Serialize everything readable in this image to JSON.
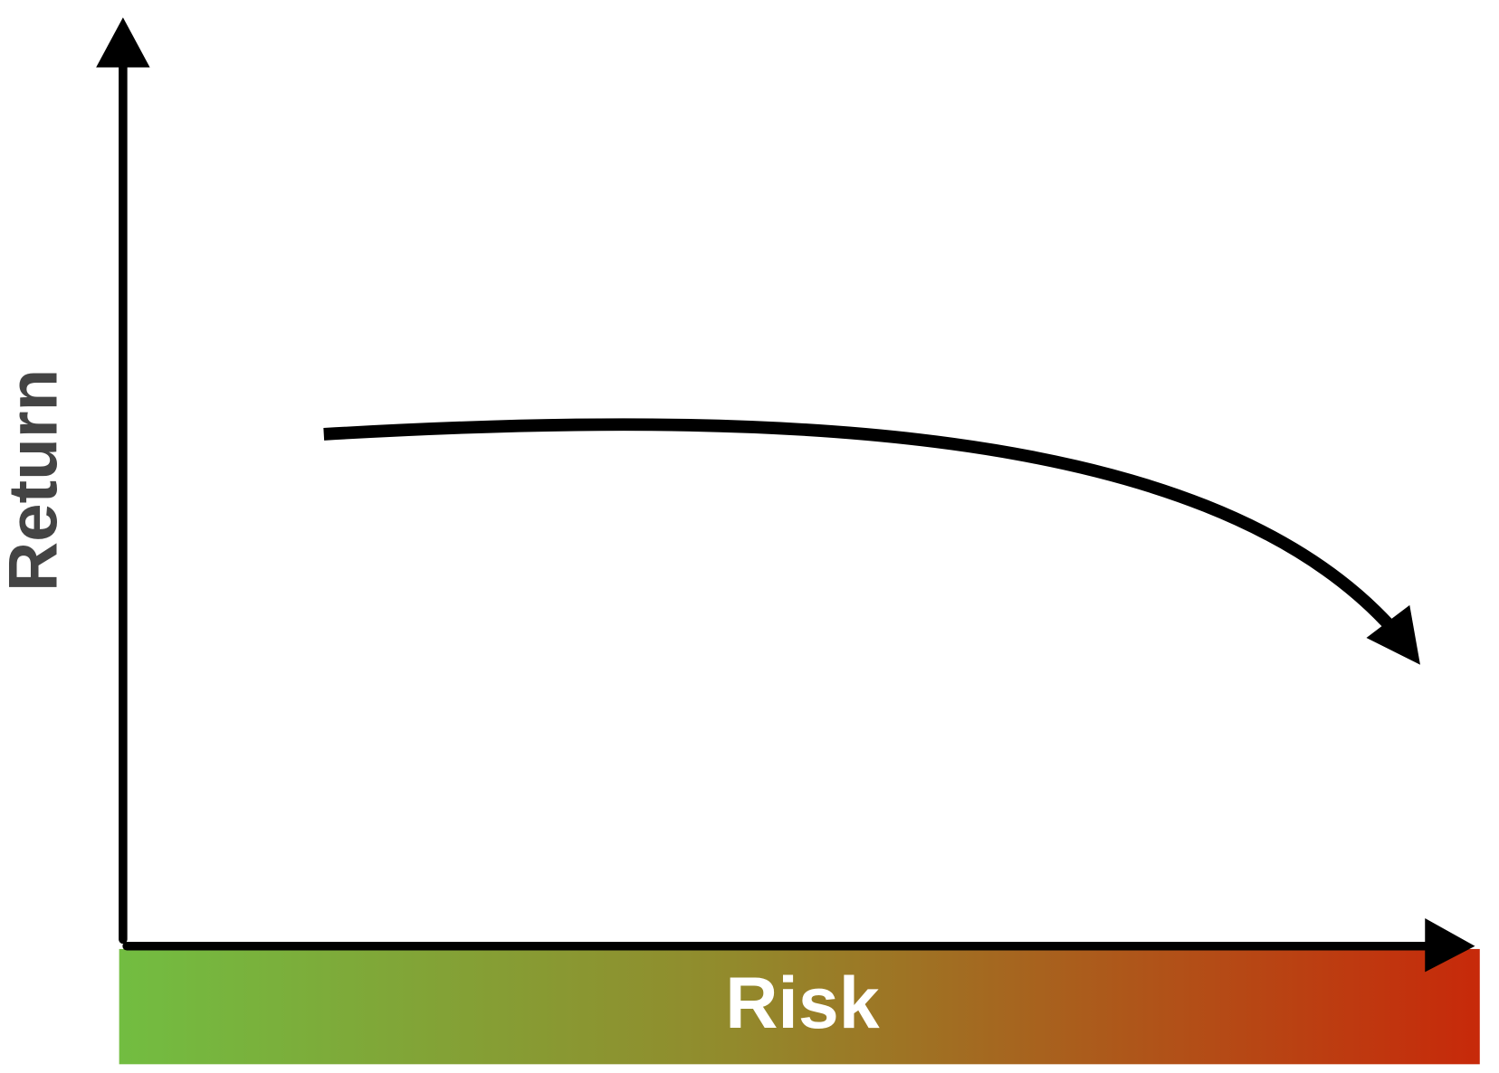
{
  "diagram": {
    "y_axis_label": "Return",
    "x_axis_label": "Risk"
  }
}
